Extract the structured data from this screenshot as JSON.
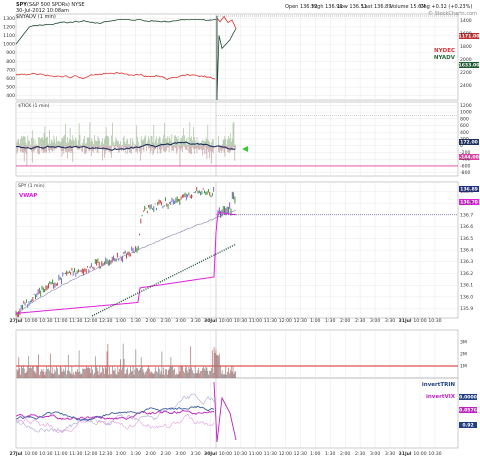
{
  "header": {
    "symbol": "SPY",
    "name": "(S&P 500 SPDRs) NYSE",
    "date": "30-Jul-2012 10:08am",
    "breadth_label": "$NYADV (1 min)",
    "quote": {
      "open": "Open 136.52",
      "high": "High 136.96",
      "low": "Low 136.51",
      "last": "Last 136.89",
      "volume": "Volume 15.6M",
      "change": "Chg +0.32 (+0.23%)"
    },
    "watermark": "© StockCharts.com"
  },
  "panels": {
    "breadth": {
      "series": [
        {
          "name": "NYDEC",
          "color": "#e03030"
        },
        {
          "name": "NYADV",
          "color": "#2a6a3a"
        }
      ],
      "yticks": [
        400,
        500,
        600,
        700,
        800,
        900,
        1000,
        1100,
        1200,
        1300
      ],
      "right_ticks": [
        1400,
        1600,
        1800,
        2000,
        2200,
        2400
      ],
      "values": {
        "adv_last": "1171.00",
        "dec_last": "1633.00"
      }
    },
    "tick": {
      "title": "$TICK (1 min)",
      "yticks": [
        -800,
        -600,
        -400,
        -200,
        0,
        200,
        400,
        600,
        800,
        1000,
        1200
      ],
      "values": {
        "ma_last": "172.00",
        "last": "-144.00"
      }
    },
    "price": {
      "title": "SPY (1 min)",
      "vwap_label": "VWAP",
      "yticks": [
        "136.9",
        "136.8",
        "136.7",
        "136.6",
        "136.5",
        "136.4",
        "136.3",
        "136.2",
        "136.1",
        "136.0",
        "135.9"
      ],
      "values": {
        "last": "136.89",
        "vwap": "136.70"
      }
    },
    "volume": {
      "yticks": [
        "1M",
        "2M",
        "3M"
      ]
    },
    "osc": {
      "series": [
        {
          "name": "invertTRIN",
          "color": "#204080"
        },
        {
          "name": "invertVIX",
          "color": "#c020c0"
        }
      ],
      "values": {
        "a": "0.0000",
        "b": "0.0576",
        "c": "0.92"
      }
    }
  },
  "time_axis": {
    "labels": [
      "27Jul",
      "10:00",
      "10:30",
      "11:00",
      "11:30",
      "12:00",
      "12:30",
      "1:00",
      "1:30",
      "2:00",
      "2:30",
      "3:00",
      "3:30",
      "30Jul",
      "10:00",
      "10:30",
      "11:00",
      "11:30",
      "12:00",
      "12:30",
      "1:00",
      "1:30",
      "2:00",
      "2:30",
      "3:00",
      "3:30",
      "31Jul",
      "10:00",
      "10:30"
    ]
  },
  "chart_data": {
    "type": "line",
    "title": "SPY (S&P 500 SPDRs) NYSE",
    "x": [
      "27Jul 9:30",
      "10:00",
      "10:30",
      "11:00",
      "11:30",
      "12:00",
      "12:30",
      "1:00",
      "1:30",
      "2:00",
      "2:30",
      "3:00",
      "3:30",
      "30Jul 9:30",
      "10:00"
    ],
    "series": [
      {
        "name": "SPY",
        "values": [
          135.85,
          136.02,
          136.12,
          136.22,
          136.33,
          136.38,
          136.42,
          136.8,
          136.79,
          136.81,
          136.82,
          136.87,
          136.92,
          136.7,
          136.89
        ]
      },
      {
        "name": "VWAP",
        "values": [
          135.87,
          135.92,
          135.98,
          136.02,
          136.08,
          136.12,
          136.16,
          136.3,
          136.34,
          136.38,
          136.42,
          136.44,
          136.46,
          136.6,
          136.7
        ]
      },
      {
        "name": "NYADV",
        "values": [
          1050,
          1150,
          1200,
          1220,
          1230,
          1235,
          1240,
          1245,
          1250,
          1255,
          1260,
          1262,
          1265,
          400,
          1171
        ]
      },
      {
        "name": "NYDEC",
        "values": [
          640,
          720,
          640,
          560,
          560,
          500,
          480,
          500,
          540,
          520,
          520,
          520,
          520,
          1300,
          1633
        ]
      },
      {
        "name": "TICK",
        "values": [
          -300,
          100,
          -200,
          0,
          -100,
          0,
          -100,
          0,
          50,
          -200,
          0,
          -50,
          -100,
          -150,
          -144
        ]
      }
    ],
    "ylim": [
      135.8,
      137.0
    ]
  }
}
